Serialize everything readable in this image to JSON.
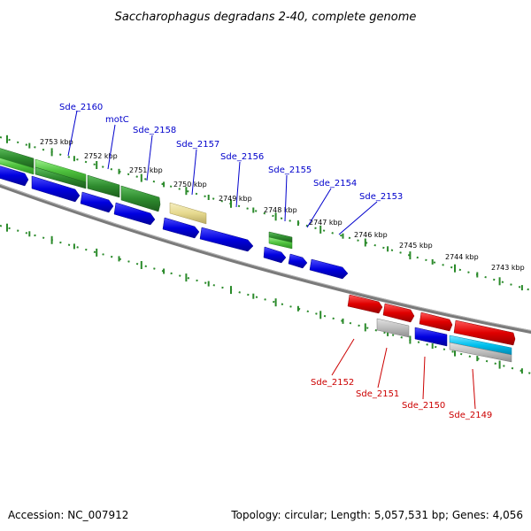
{
  "title": "Saccharophagus degradans 2-40, complete genome",
  "footer": {
    "accession": "Accession: NC_007912",
    "summary": "Topology: circular; Length: 5,057,531 bp; Genes: 4,056"
  },
  "kbp_labels": [
    "2753 kbp",
    "2752 kbp",
    "2751 kbp",
    "2750 kbp",
    "2749 kbp",
    "2748 kbp",
    "2747 kbp",
    "2746 kbp",
    "2745 kbp",
    "2744 kbp",
    "2743 kbp"
  ],
  "genes_top": [
    "Sde_2160",
    "motC",
    "Sde_2158",
    "Sde_2157",
    "Sde_2156",
    "Sde_2155",
    "Sde_2154",
    "Sde_2153"
  ],
  "genes_bottom": [
    "Sde_2152",
    "Sde_2151",
    "Sde_2150",
    "Sde_2149"
  ],
  "colors": {
    "green": "#2e8b2e",
    "light_green": "#5ccc4a",
    "blue": "#0000e0",
    "red": "#e00000",
    "yellow": "#e8dd99",
    "gray": "#bcbcbc",
    "cyan": "#00c8f0",
    "backbone": "#7a7a7a",
    "tick": "#2a8a2a",
    "label_blue": "#0000cc",
    "label_red": "#cc0000"
  }
}
